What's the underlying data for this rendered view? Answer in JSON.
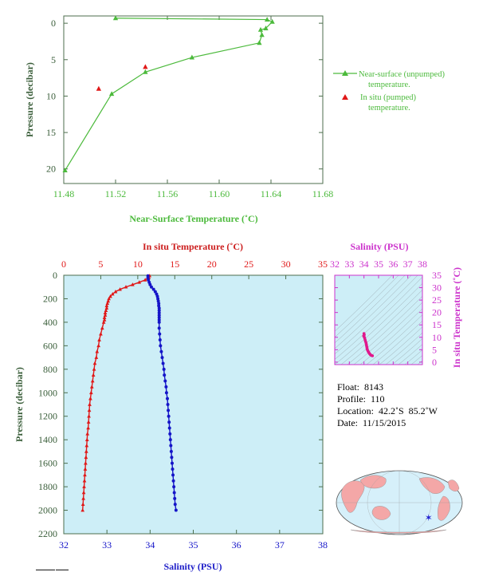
{
  "chart_data": [
    {
      "type": "line",
      "xlabel": "Near-Surface Temperature (˚C)",
      "ylabel": "Pressure (decibar)",
      "xlim": [
        11.48,
        11.68
      ],
      "ylim": [
        22,
        -1
      ],
      "x_ticks": [
        "11.48",
        "11.52",
        "11.56",
        "11.60",
        "11.64",
        "11.68"
      ],
      "y_ticks": [
        "0",
        "5",
        "10",
        "15",
        "20"
      ],
      "colors": {
        "unpumped": "#4cba3c",
        "pumped": "#e01818"
      },
      "series": [
        {
          "name": "Near-surface (unpumped) temperature.",
          "points": [
            [
              11.52,
              -0.7
            ],
            [
              11.637,
              -0.5
            ],
            [
              11.641,
              -0.2
            ],
            [
              11.636,
              0.7
            ],
            [
              11.632,
              0.9
            ],
            [
              11.633,
              1.6
            ],
            [
              11.631,
              2.7
            ],
            [
              11.579,
              4.7
            ],
            [
              11.543,
              6.7
            ],
            [
              11.517,
              9.7
            ],
            [
              11.481,
              20.2
            ]
          ]
        },
        {
          "name": "In situ (pumped) temperature.",
          "points": [
            [
              11.543,
              6.0
            ],
            [
              11.507,
              9.0
            ]
          ]
        }
      ]
    },
    {
      "type": "scatter",
      "xlabel": "Salinity (PSU)",
      "x2label": "In situ Temperature (˚C)",
      "ylabel": "Pressure (decibar)",
      "salinity_lim": [
        32,
        38
      ],
      "temperature_lim": [
        0,
        35
      ],
      "ylim": [
        2200,
        0
      ],
      "salinity_ticks": [
        "32",
        "33",
        "34",
        "35",
        "36",
        "37",
        "38"
      ],
      "temperature_ticks": [
        "0",
        "5",
        "10",
        "15",
        "20",
        "25",
        "30",
        "35"
      ],
      "pressure_ticks": [
        "0",
        "200",
        "400",
        "600",
        "800",
        "1000",
        "1200",
        "1400",
        "1600",
        "1800",
        "2000",
        "2200"
      ],
      "colors": {
        "temperature": "#e01818",
        "salinity": "#1414c8",
        "background": "#cdeef7"
      },
      "series": [
        {
          "name": "In situ Temperature (˚C)",
          "pressure": [
            5,
            20,
            40,
            60,
            80,
            100,
            120,
            140,
            160,
            180,
            200,
            220,
            240,
            260,
            280,
            300,
            320,
            340,
            360,
            380,
            400,
            450,
            500,
            550,
            600,
            650,
            700,
            750,
            800,
            850,
            900,
            950,
            1000,
            1050,
            1100,
            1150,
            1200,
            1250,
            1300,
            1350,
            1400,
            1450,
            1500,
            1550,
            1600,
            1650,
            1700,
            1750,
            1800,
            1850,
            1900,
            1950,
            2000
          ],
          "values": [
            11.6,
            11.5,
            11.0,
            10.2,
            9.3,
            8.4,
            7.6,
            7.0,
            6.6,
            6.3,
            6.1,
            6.0,
            5.9,
            5.8,
            5.8,
            5.7,
            5.6,
            5.6,
            5.5,
            5.5,
            5.4,
            5.2,
            5.0,
            4.8,
            4.7,
            4.5,
            4.4,
            4.2,
            4.1,
            4.0,
            3.9,
            3.8,
            3.7,
            3.6,
            3.5,
            3.45,
            3.4,
            3.35,
            3.3,
            3.2,
            3.15,
            3.1,
            3.05,
            3.0,
            2.95,
            2.9,
            2.85,
            2.8,
            2.75,
            2.7,
            2.65,
            2.6,
            2.55
          ]
        },
        {
          "name": "Salinity (PSU)",
          "pressure": [
            5,
            20,
            40,
            60,
            80,
            100,
            120,
            140,
            160,
            180,
            200,
            220,
            240,
            260,
            280,
            300,
            320,
            340,
            360,
            380,
            400,
            450,
            500,
            550,
            600,
            650,
            700,
            750,
            800,
            850,
            900,
            950,
            1000,
            1050,
            1100,
            1150,
            1200,
            1250,
            1300,
            1350,
            1400,
            1450,
            1500,
            1550,
            1600,
            1650,
            1700,
            1750,
            1800,
            1850,
            1900,
            1950,
            2000
          ],
          "values": [
            33.95,
            33.95,
            33.96,
            33.98,
            34.0,
            34.03,
            34.08,
            34.12,
            34.15,
            34.17,
            34.18,
            34.19,
            34.2,
            34.2,
            34.21,
            34.21,
            34.21,
            34.21,
            34.21,
            34.21,
            34.21,
            34.21,
            34.22,
            34.23,
            34.24,
            34.26,
            34.28,
            34.3,
            34.32,
            34.33,
            34.35,
            34.37,
            34.38,
            34.4,
            34.41,
            34.42,
            34.43,
            34.44,
            34.45,
            34.46,
            34.47,
            34.48,
            34.49,
            34.5,
            34.51,
            34.52,
            34.53,
            34.54,
            34.55,
            34.56,
            34.57,
            34.58,
            34.6
          ]
        }
      ]
    },
    {
      "type": "scatter",
      "xlabel": "Salinity (PSU)",
      "ylabel": "In situ Temperature (˚C)",
      "xlim": [
        32,
        38
      ],
      "ylim": [
        -1,
        35
      ],
      "x_ticks": [
        "32",
        "33",
        "34",
        "35",
        "36",
        "37",
        "38"
      ],
      "y_ticks": [
        "0",
        "5",
        "10",
        "15",
        "20",
        "25",
        "30",
        "35"
      ],
      "colors": {
        "points": "#e0188c",
        "axis": "#cc33cc"
      },
      "points": [
        [
          34.0,
          11.5
        ],
        [
          34.02,
          11.0
        ],
        [
          33.98,
          10.5
        ],
        [
          34.03,
          10.0
        ],
        [
          34.05,
          9.6
        ],
        [
          34.08,
          9.0
        ],
        [
          34.1,
          8.5
        ],
        [
          34.13,
          8.0
        ],
        [
          34.15,
          7.5
        ],
        [
          34.17,
          7.0
        ],
        [
          34.18,
          6.5
        ],
        [
          34.2,
          6.0
        ],
        [
          34.21,
          5.6
        ],
        [
          34.22,
          5.2
        ],
        [
          34.25,
          4.8
        ],
        [
          34.28,
          4.4
        ],
        [
          34.32,
          4.0
        ],
        [
          34.36,
          3.6
        ],
        [
          34.4,
          3.3
        ],
        [
          34.44,
          3.0
        ],
        [
          34.48,
          2.8
        ],
        [
          34.53,
          2.65
        ],
        [
          34.58,
          2.55
        ]
      ]
    }
  ],
  "info": {
    "float_label": "Float:",
    "float_value": "8143",
    "profile_label": "Profile:",
    "profile_value": "110",
    "location_label": "Location:",
    "location_value": "42.2˚S  85.2˚W",
    "date_label": "Date:",
    "date_value": "11/15/2015"
  },
  "map": {
    "marker_lat": -42.2,
    "marker_lon": -85.2,
    "colors": {
      "ocean": "#d6f0fa",
      "land": "#f4a7a7",
      "marker": "#1e1ed2"
    }
  }
}
